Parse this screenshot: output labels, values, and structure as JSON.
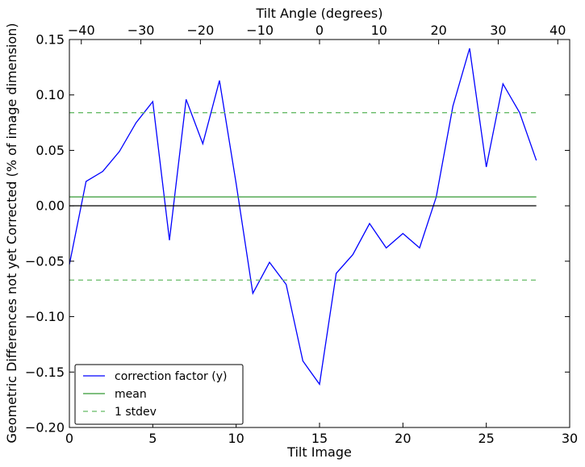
{
  "chart_data": {
    "type": "line",
    "xlabel": "Tilt Image",
    "ylabel": "Geometric Differences not yet Corrected (% of image dimension)",
    "top_xlabel": "Tilt Angle (degrees)",
    "xlim": [
      0,
      30
    ],
    "ylim": [
      -0.2,
      0.15
    ],
    "top_xlim": [
      -42,
      42
    ],
    "xticks": [
      0,
      5,
      10,
      15,
      20,
      25,
      30
    ],
    "xtick_labels": [
      "0",
      "5",
      "10",
      "15",
      "20",
      "25",
      "30"
    ],
    "yticks": [
      -0.2,
      -0.15,
      -0.1,
      -0.05,
      0.0,
      0.05,
      0.1,
      0.15
    ],
    "ytick_labels": [
      "−0.20",
      "−0.15",
      "−0.10",
      "−0.05",
      "0.00",
      "0.05",
      "0.10",
      "0.15"
    ],
    "top_xticks": [
      -40,
      -30,
      -20,
      -10,
      0,
      10,
      20,
      30,
      40
    ],
    "top_xtick_labels": [
      "−40",
      "−30",
      "−20",
      "−10",
      "0",
      "10",
      "20",
      "30",
      "40"
    ],
    "grid": false,
    "legend_position": "lower-left",
    "series": [
      {
        "name": "correction factor (y)",
        "color": "#0000ff",
        "style": "solid",
        "x": [
          0,
          1,
          2,
          3,
          4,
          5,
          6,
          7,
          8,
          9,
          10,
          11,
          12,
          13,
          14,
          15,
          16,
          17,
          18,
          19,
          20,
          21,
          22,
          23,
          24,
          25,
          26,
          27,
          28
        ],
        "y": [
          -0.053,
          0.022,
          0.031,
          0.049,
          0.075,
          0.094,
          -0.031,
          0.096,
          0.056,
          0.113,
          0.02,
          -0.079,
          -0.051,
          -0.071,
          -0.14,
          -0.161,
          -0.061,
          -0.044,
          -0.016,
          -0.038,
          -0.025,
          -0.038,
          0.008,
          0.09,
          0.142,
          0.035,
          0.11,
          0.084,
          0.041
        ]
      },
      {
        "name": "mean",
        "color": "#339933",
        "style": "solid",
        "x": [
          0,
          28
        ],
        "y": [
          0.008,
          0.008
        ]
      },
      {
        "name": "1 stdev",
        "color": "#66bb66",
        "style": "dashed",
        "x": [
          0,
          28
        ],
        "y": [
          0.084,
          0.084
        ]
      },
      {
        "name": "",
        "color": "#66bb66",
        "style": "dashed",
        "x": [
          0,
          28
        ],
        "y": [
          -0.067,
          -0.067
        ]
      },
      {
        "name": "",
        "color": "#000000",
        "style": "solid",
        "x": [
          0,
          28
        ],
        "y": [
          0.0,
          0.0
        ]
      }
    ]
  }
}
